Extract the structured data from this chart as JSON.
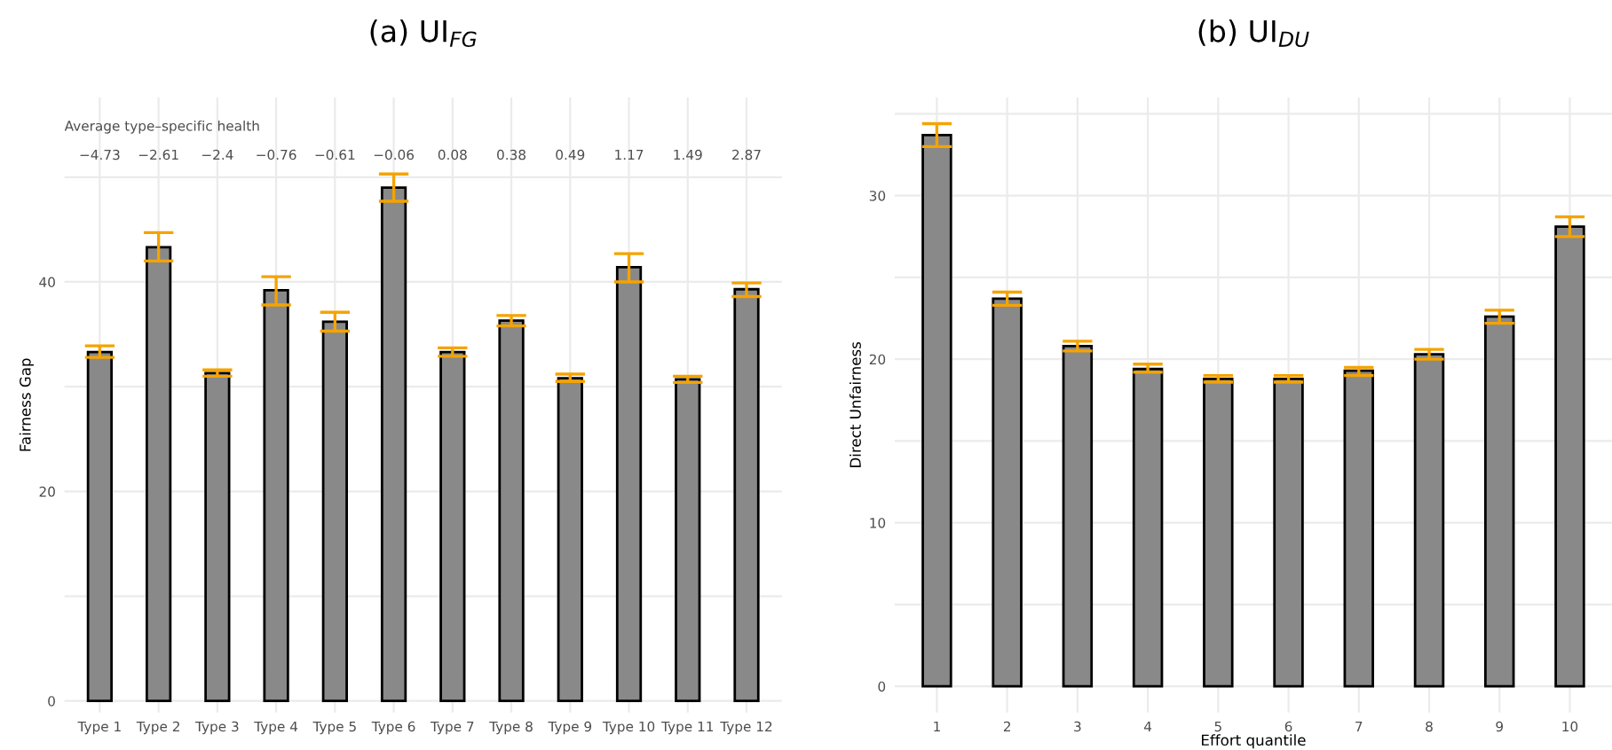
{
  "chart_data": [
    {
      "type": "bar",
      "title": "(a) UI$_{FG}$",
      "ylabel": "Fairness Gap",
      "categories": [
        "Type 1",
        "Type 2",
        "Type 3",
        "Type 4",
        "Type 5",
        "Type 6",
        "Type 7",
        "Type 8",
        "Type 9",
        "Type 10",
        "Type 11",
        "Type 12"
      ],
      "series": [
        {
          "color": "#898989",
          "values": [
            33.3,
            43.3,
            31.3,
            39.2,
            36.2,
            49.0,
            33.3,
            36.3,
            30.8,
            41.4,
            30.7,
            39.3
          ],
          "errors": [
            [
              32.8,
              33.9
            ],
            [
              42.0,
              44.7
            ],
            [
              31.0,
              31.6
            ],
            [
              37.8,
              40.5
            ],
            [
              35.3,
              37.1
            ],
            [
              47.7,
              50.3
            ],
            [
              32.9,
              33.7
            ],
            [
              35.8,
              36.8
            ],
            [
              30.5,
              31.2
            ],
            [
              40.0,
              42.7
            ],
            [
              30.4,
              31.0
            ],
            [
              38.6,
              39.9
            ]
          ]
        }
      ],
      "annotations": [
        "Average type–specific health",
        "−4.73",
        "−2.61",
        "−2.4",
        "−0.76",
        "−0.61",
        "−0.06",
        "0.08",
        "0.38",
        "0.49",
        "1.17",
        "1.49",
        "2.87"
      ],
      "ylim": [
        -1.1,
        57.6
      ],
      "yticks": [
        0,
        {
          "value": 10,
          "label": null
        },
        20,
        {
          "value": 30,
          "label": null
        },
        40,
        {
          "value": 50,
          "label": null
        }
      ],
      "grid": true
    },
    {
      "type": "bar",
      "title": "(b) UI$_{DU}$",
      "xlabel": "Effort quantile",
      "ylabel": "Direct Unfairness",
      "categories": [
        "1",
        "2",
        "3",
        "4",
        "5",
        "6",
        "7",
        "8",
        "9",
        "10"
      ],
      "series": [
        {
          "color": "#898989",
          "values": [
            33.7,
            23.7,
            20.8,
            19.4,
            18.8,
            18.8,
            19.3,
            20.3,
            22.6,
            28.1
          ],
          "errors": [
            [
              33.0,
              34.4
            ],
            [
              23.3,
              24.1
            ],
            [
              20.5,
              21.1
            ],
            [
              19.2,
              19.7
            ],
            [
              18.6,
              19.0
            ],
            [
              18.6,
              19.0
            ],
            [
              19.0,
              19.5
            ],
            [
              20.0,
              20.6
            ],
            [
              22.2,
              23.0
            ],
            [
              27.5,
              28.7
            ]
          ]
        }
      ],
      "ylim": [
        -1.6,
        36
      ],
      "yticks": [
        0,
        {
          "value": 5,
          "label": null
        },
        10,
        {
          "value": 15,
          "label": null
        },
        20,
        {
          "value": 25,
          "label": null
        },
        30,
        {
          "value": 35,
          "label": null
        }
      ],
      "grid": true
    }
  ]
}
